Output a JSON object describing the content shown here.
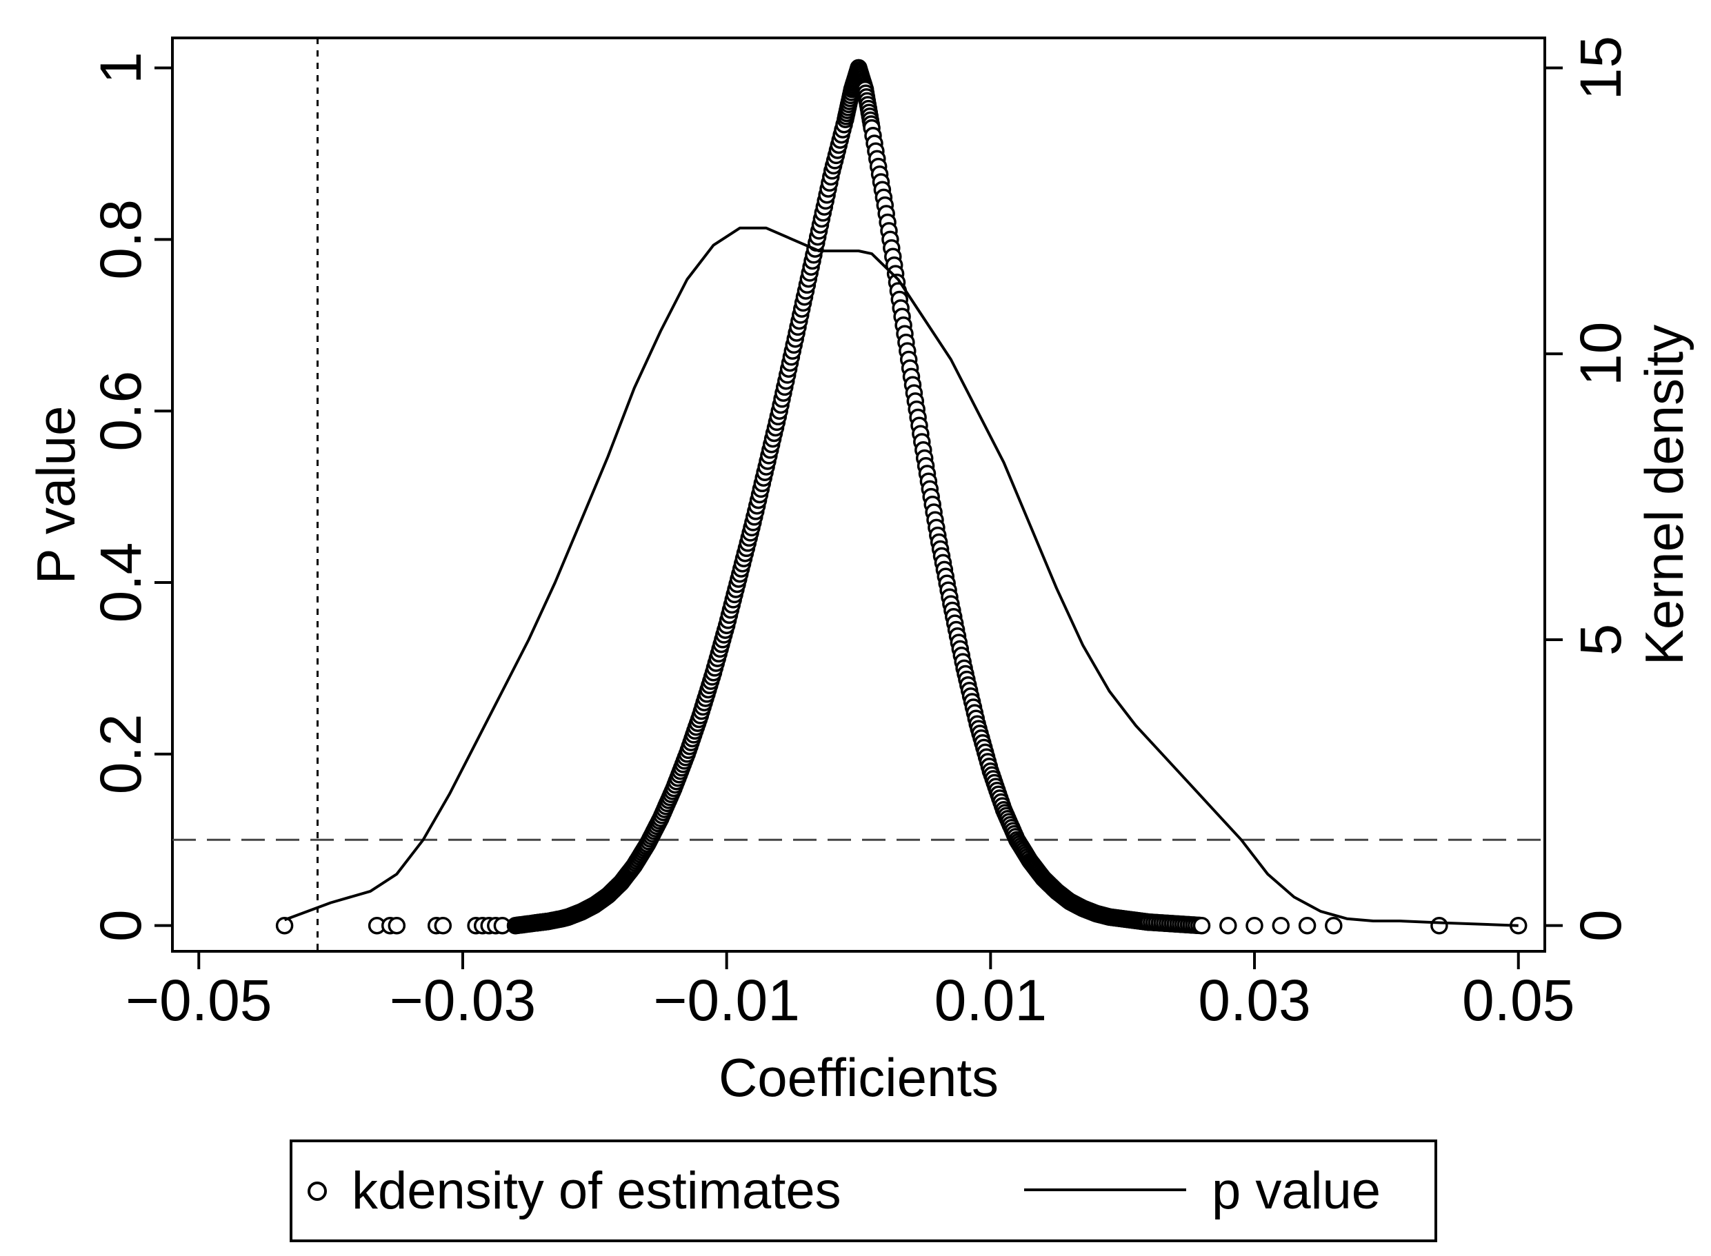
{
  "chart_data": {
    "type": "scatter",
    "xlabel": "Coefficients",
    "ylabel_left": "P value",
    "ylabel_right": "Kernel density",
    "xlim": [
      -0.052,
      0.052
    ],
    "ylim_left": [
      -0.03,
      1.035
    ],
    "ylim_right": [
      -0.45,
      15.525
    ],
    "x_ticks": [
      -0.05,
      -0.03,
      -0.01,
      0.01,
      0.03,
      0.05
    ],
    "x_tick_labels": [
      "−0.05",
      "−0.03",
      "−0.01",
      "0.01",
      "0.03",
      "0.05"
    ],
    "y_left_ticks": [
      0,
      0.2,
      0.4,
      0.6,
      0.8,
      1
    ],
    "y_left_tick_labels": [
      "0",
      "0.2",
      "0.4",
      "0.6",
      "0.8",
      "1"
    ],
    "y_right_ticks": [
      0,
      5,
      10,
      15
    ],
    "y_right_tick_labels": [
      "0",
      "5",
      "10",
      "15"
    ],
    "reference_lines": {
      "vertical_x": -0.041,
      "horizontal_p": 0.1
    },
    "legend": {
      "position": "bottom",
      "entries": [
        "kdensity of estimates",
        "p value"
      ]
    },
    "series": [
      {
        "name": "kdensity of estimates",
        "style": "hollow-circle",
        "left_branch": {
          "x": [
            -0.0435,
            -0.0365,
            -0.0355,
            -0.035,
            -0.032,
            -0.0315,
            -0.029,
            -0.0285,
            -0.028,
            -0.0275,
            -0.027,
            -0.026,
            -0.0245,
            -0.024,
            -0.0235,
            -0.0225,
            -0.022,
            -0.021,
            -0.02,
            -0.019,
            -0.018,
            -0.017,
            -0.016,
            -0.015,
            -0.014,
            -0.013,
            -0.012,
            -0.011,
            -0.01,
            -0.009,
            -0.008,
            -0.007,
            -0.006,
            -0.005,
            -0.004,
            -0.003,
            -0.002,
            -0.001,
            -0.0005,
            0.0
          ],
          "p": [
            0.0,
            0.0,
            0.0,
            0.0,
            0.0,
            0.0,
            0.0,
            0.0,
            0.0,
            0.0,
            0.0,
            0.0,
            0.003,
            0.004,
            0.005,
            0.008,
            0.01,
            0.016,
            0.024,
            0.035,
            0.05,
            0.07,
            0.095,
            0.125,
            0.16,
            0.2,
            0.245,
            0.295,
            0.35,
            0.41,
            0.47,
            0.535,
            0.6,
            0.67,
            0.74,
            0.81,
            0.88,
            0.94,
            0.975,
            1.0
          ]
        },
        "right_branch": {
          "x": [
            0.0,
            0.0005,
            0.001,
            0.002,
            0.003,
            0.004,
            0.005,
            0.006,
            0.007,
            0.008,
            0.009,
            0.01,
            0.011,
            0.012,
            0.013,
            0.014,
            0.015,
            0.016,
            0.017,
            0.018,
            0.019,
            0.02,
            0.021,
            0.022,
            0.024,
            0.026,
            0.028,
            0.03,
            0.032,
            0.034,
            0.036,
            0.044,
            0.05
          ],
          "p": [
            1.0,
            0.975,
            0.93,
            0.84,
            0.74,
            0.64,
            0.545,
            0.455,
            0.375,
            0.3,
            0.235,
            0.18,
            0.135,
            0.1,
            0.075,
            0.055,
            0.04,
            0.028,
            0.02,
            0.014,
            0.01,
            0.008,
            0.006,
            0.004,
            0.002,
            0.0,
            0.0,
            0.0,
            0.0,
            0.0,
            0.0,
            0.0,
            0.0
          ]
        }
      },
      {
        "name": "p value",
        "style": "solid-line",
        "axis": "right",
        "x": [
          -0.0435,
          -0.04,
          -0.037,
          -0.035,
          -0.033,
          -0.031,
          -0.029,
          -0.027,
          -0.025,
          -0.023,
          -0.021,
          -0.019,
          -0.017,
          -0.015,
          -0.013,
          -0.011,
          -0.009,
          -0.007,
          -0.005,
          -0.003,
          -0.001,
          0.0,
          0.001,
          0.003,
          0.005,
          0.007,
          0.009,
          0.011,
          0.013,
          0.015,
          0.017,
          0.019,
          0.021,
          0.023,
          0.025,
          0.027,
          0.029,
          0.031,
          0.033,
          0.035,
          0.037,
          0.039,
          0.041,
          0.044,
          0.05
        ],
        "y": [
          0.1,
          0.4,
          0.6,
          0.9,
          1.5,
          2.3,
          3.2,
          4.1,
          5.0,
          6.0,
          7.1,
          8.2,
          9.4,
          10.4,
          11.3,
          11.9,
          12.2,
          12.2,
          12.0,
          11.8,
          11.8,
          11.8,
          11.75,
          11.3,
          10.6,
          9.9,
          9.0,
          8.1,
          7.0,
          5.9,
          4.9,
          4.1,
          3.5,
          3.0,
          2.5,
          2.0,
          1.5,
          0.9,
          0.5,
          0.25,
          0.12,
          0.08,
          0.08,
          0.05,
          0.0
        ]
      }
    ]
  }
}
